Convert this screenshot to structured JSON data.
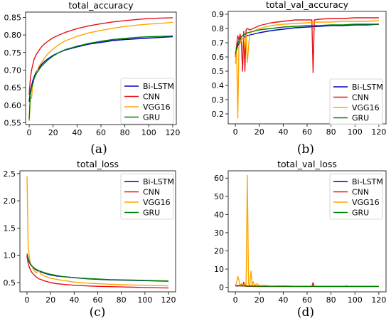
{
  "chart_data": [
    {
      "type": "line",
      "title": "total_accuracy",
      "caption": "(a)",
      "xlabel": "",
      "ylabel": "",
      "xlim": [
        -3,
        123
      ],
      "ylim": [
        0.545,
        0.865
      ],
      "xticks": [
        0,
        20,
        40,
        60,
        80,
        100,
        120
      ],
      "yticks": [
        0.55,
        0.6,
        0.65,
        0.7,
        0.75,
        0.8,
        0.85
      ],
      "ytick_labels": [
        "0.55",
        "0.60",
        "0.65",
        "0.70",
        "0.75",
        "0.80",
        "0.85"
      ],
      "legend_position": "lower-right",
      "grid": false,
      "series": [
        {
          "name": "Bi-LSTM",
          "color": "#0000cc",
          "x": [
            0,
            1,
            2,
            3,
            4,
            6,
            8,
            10,
            13,
            16,
            20,
            25,
            30,
            40,
            50,
            60,
            70,
            80,
            90,
            100,
            110,
            120
          ],
          "y": [
            0.61,
            0.64,
            0.655,
            0.67,
            0.68,
            0.695,
            0.705,
            0.715,
            0.725,
            0.733,
            0.742,
            0.75,
            0.757,
            0.766,
            0.774,
            0.779,
            0.784,
            0.787,
            0.789,
            0.791,
            0.793,
            0.795
          ]
        },
        {
          "name": "CNN",
          "color": "#e8101a",
          "x": [
            0,
            1,
            2,
            3,
            4,
            6,
            8,
            10,
            13,
            16,
            20,
            25,
            30,
            40,
            50,
            60,
            70,
            80,
            90,
            100,
            110,
            120
          ],
          "y": [
            0.63,
            0.675,
            0.7,
            0.715,
            0.73,
            0.745,
            0.755,
            0.765,
            0.775,
            0.783,
            0.792,
            0.8,
            0.807,
            0.818,
            0.826,
            0.832,
            0.837,
            0.841,
            0.844,
            0.847,
            0.848,
            0.849
          ]
        },
        {
          "name": "VGG16",
          "color": "#ffa500",
          "x": [
            0,
            1,
            2,
            3,
            4,
            6,
            8,
            10,
            13,
            16,
            20,
            25,
            30,
            40,
            50,
            60,
            70,
            80,
            90,
            100,
            110,
            120
          ],
          "y": [
            0.555,
            0.62,
            0.62,
            0.66,
            0.675,
            0.69,
            0.71,
            0.72,
            0.735,
            0.748,
            0.76,
            0.773,
            0.783,
            0.796,
            0.806,
            0.813,
            0.819,
            0.824,
            0.828,
            0.831,
            0.833,
            0.836
          ]
        },
        {
          "name": "GRU",
          "color": "#008000",
          "x": [
            0,
            1,
            2,
            3,
            4,
            6,
            8,
            10,
            13,
            16,
            20,
            25,
            30,
            40,
            50,
            60,
            70,
            80,
            90,
            100,
            110,
            120
          ],
          "y": [
            0.56,
            0.63,
            0.65,
            0.66,
            0.675,
            0.69,
            0.7,
            0.71,
            0.72,
            0.73,
            0.74,
            0.75,
            0.758,
            0.768,
            0.776,
            0.782,
            0.787,
            0.79,
            0.793,
            0.795,
            0.796,
            0.797
          ]
        }
      ]
    },
    {
      "type": "line",
      "title": "total_val_accuracy",
      "caption": "(b)",
      "xlabel": "",
      "ylabel": "",
      "xlim": [
        -6,
        126
      ],
      "ylim": [
        0.13,
        0.92
      ],
      "xticks": [
        0,
        20,
        40,
        60,
        80,
        100,
        120
      ],
      "yticks": [
        0.2,
        0.3,
        0.4,
        0.5,
        0.6,
        0.7,
        0.8,
        0.9
      ],
      "ytick_labels": [
        "0.2",
        "0.3",
        "0.4",
        "0.5",
        "0.6",
        "0.7",
        "0.8",
        "0.9"
      ],
      "legend_position": "lower-right",
      "grid": false,
      "series": [
        {
          "name": "Bi-LSTM",
          "color": "#0000cc",
          "x": [
            0,
            2,
            4,
            6,
            8,
            10,
            15,
            20,
            30,
            40,
            50,
            60,
            70,
            80,
            90,
            100,
            110,
            120
          ],
          "y": [
            0.62,
            0.68,
            0.71,
            0.73,
            0.74,
            0.75,
            0.76,
            0.77,
            0.785,
            0.795,
            0.805,
            0.81,
            0.815,
            0.82,
            0.82,
            0.825,
            0.825,
            0.83
          ]
        },
        {
          "name": "CNN",
          "color": "#e8101a",
          "x": [
            0,
            1,
            2,
            3,
            4,
            5,
            6,
            7,
            8,
            9,
            10,
            12,
            15,
            20,
            25,
            30,
            40,
            50,
            60,
            64,
            65,
            66,
            70,
            80,
            90,
            100,
            110,
            120
          ],
          "y": [
            0.6,
            0.68,
            0.75,
            0.72,
            0.76,
            0.7,
            0.5,
            0.78,
            0.5,
            0.79,
            0.8,
            0.79,
            0.8,
            0.82,
            0.83,
            0.84,
            0.85,
            0.86,
            0.86,
            0.86,
            0.49,
            0.86,
            0.865,
            0.87,
            0.87,
            0.875,
            0.875,
            0.875
          ]
        },
        {
          "name": "VGG16",
          "color": "#ffa500",
          "x": [
            0,
            1,
            2,
            3,
            4,
            5,
            6,
            7,
            8,
            9,
            10,
            12,
            15,
            20,
            25,
            30,
            40,
            50,
            60,
            70,
            80,
            90,
            100,
            110,
            120
          ],
          "y": [
            0.55,
            0.65,
            0.17,
            0.68,
            0.7,
            0.72,
            0.73,
            0.74,
            0.66,
            0.75,
            0.56,
            0.77,
            0.78,
            0.8,
            0.81,
            0.82,
            0.83,
            0.835,
            0.84,
            0.845,
            0.845,
            0.85,
            0.85,
            0.85,
            0.855
          ]
        },
        {
          "name": "GRU",
          "color": "#008000",
          "x": [
            0,
            2,
            4,
            6,
            8,
            10,
            15,
            20,
            30,
            40,
            50,
            60,
            70,
            80,
            90,
            100,
            110,
            120
          ],
          "y": [
            0.62,
            0.7,
            0.73,
            0.75,
            0.76,
            0.77,
            0.78,
            0.79,
            0.8,
            0.81,
            0.815,
            0.82,
            0.82,
            0.825,
            0.825,
            0.83,
            0.83,
            0.83
          ]
        }
      ]
    },
    {
      "type": "line",
      "title": "total_loss",
      "caption": "(c)",
      "xlabel": "",
      "ylabel": "",
      "xlim": [
        -6,
        126
      ],
      "ylim": [
        0.33,
        2.55
      ],
      "xticks": [
        0,
        20,
        40,
        60,
        80,
        100,
        120
      ],
      "yticks": [
        0.5,
        1.0,
        1.5,
        2.0,
        2.5
      ],
      "ytick_labels": [
        "0.5",
        "1.0",
        "1.5",
        "2.0",
        "2.5"
      ],
      "legend_position": "upper-right",
      "grid": false,
      "series": [
        {
          "name": "Bi-LSTM",
          "color": "#0000cc",
          "x": [
            0,
            1,
            2,
            3,
            4,
            6,
            8,
            10,
            15,
            20,
            25,
            30,
            40,
            50,
            60,
            70,
            80,
            90,
            100,
            110,
            120
          ],
          "y": [
            1.0,
            0.92,
            0.87,
            0.83,
            0.8,
            0.76,
            0.73,
            0.71,
            0.67,
            0.64,
            0.62,
            0.61,
            0.59,
            0.57,
            0.56,
            0.55,
            0.545,
            0.54,
            0.535,
            0.53,
            0.525
          ]
        },
        {
          "name": "CNN",
          "color": "#e8101a",
          "x": [
            0,
            1,
            2,
            3,
            4,
            6,
            8,
            10,
            15,
            20,
            25,
            30,
            40,
            50,
            60,
            70,
            80,
            90,
            100,
            110,
            120
          ],
          "y": [
            0.98,
            0.85,
            0.78,
            0.73,
            0.69,
            0.64,
            0.6,
            0.57,
            0.53,
            0.5,
            0.48,
            0.47,
            0.45,
            0.44,
            0.43,
            0.425,
            0.42,
            0.415,
            0.41,
            0.405,
            0.4
          ]
        },
        {
          "name": "VGG16",
          "color": "#ffa500",
          "x": [
            0,
            1,
            2,
            3,
            4,
            6,
            8,
            10,
            12,
            15,
            20,
            25,
            30,
            40,
            50,
            60,
            70,
            80,
            90,
            100,
            110,
            120
          ],
          "y": [
            2.45,
            1.2,
            0.95,
            0.85,
            0.8,
            0.72,
            0.68,
            0.72,
            0.65,
            0.62,
            0.58,
            0.56,
            0.54,
            0.51,
            0.49,
            0.48,
            0.47,
            0.46,
            0.455,
            0.45,
            0.445,
            0.44
          ]
        },
        {
          "name": "GRU",
          "color": "#008000",
          "x": [
            0,
            1,
            2,
            3,
            4,
            6,
            8,
            10,
            15,
            20,
            25,
            30,
            40,
            50,
            60,
            70,
            80,
            90,
            100,
            110,
            120
          ],
          "y": [
            1.03,
            0.94,
            0.88,
            0.84,
            0.81,
            0.77,
            0.74,
            0.72,
            0.68,
            0.65,
            0.63,
            0.61,
            0.59,
            0.575,
            0.565,
            0.555,
            0.55,
            0.545,
            0.54,
            0.535,
            0.53
          ]
        }
      ]
    },
    {
      "type": "line",
      "title": "total_val_loss",
      "caption": "(d)",
      "xlabel": "",
      "ylabel": "",
      "xlim": [
        -6,
        126
      ],
      "ylim": [
        -2.5,
        64
      ],
      "xticks": [
        0,
        20,
        40,
        60,
        80,
        100,
        120
      ],
      "yticks": [
        0,
        10,
        20,
        30,
        40,
        50,
        60
      ],
      "ytick_labels": [
        "0",
        "10",
        "20",
        "30",
        "40",
        "50",
        "60"
      ],
      "legend_position": "upper-right",
      "grid": false,
      "series": [
        {
          "name": "Bi-LSTM",
          "color": "#0000cc",
          "x": [
            0,
            10,
            20,
            40,
            60,
            80,
            100,
            120
          ],
          "y": [
            0.9,
            0.7,
            0.6,
            0.55,
            0.5,
            0.5,
            0.5,
            0.5
          ]
        },
        {
          "name": "CNN",
          "color": "#e8101a",
          "x": [
            0,
            2,
            4,
            6,
            7,
            8,
            10,
            20,
            40,
            60,
            64,
            65,
            66,
            70,
            80,
            100,
            120
          ],
          "y": [
            0.8,
            0.6,
            1.5,
            0.6,
            2.8,
            0.6,
            0.5,
            0.45,
            0.4,
            0.4,
            0.4,
            2.6,
            0.4,
            0.4,
            0.4,
            0.4,
            0.4
          ]
        },
        {
          "name": "VGG16",
          "color": "#ffa500",
          "x": [
            0,
            1,
            2,
            3,
            4,
            5,
            6,
            7,
            8,
            9,
            10,
            11,
            12,
            13,
            14,
            15,
            16,
            18,
            20,
            25,
            30,
            40,
            50,
            60,
            80,
            92,
            93,
            94,
            100,
            120
          ],
          "y": [
            1.0,
            2.5,
            6.0,
            4.0,
            1.0,
            2.0,
            0.8,
            1.5,
            2.0,
            1.0,
            61.5,
            2.0,
            1.0,
            9.0,
            1.0,
            3.0,
            1.0,
            2.0,
            0.8,
            1.0,
            0.6,
            0.8,
            0.5,
            0.5,
            0.5,
            0.5,
            1.0,
            0.5,
            0.5,
            0.5
          ]
        },
        {
          "name": "GRU",
          "color": "#008000",
          "x": [
            0,
            10,
            20,
            40,
            60,
            80,
            100,
            120
          ],
          "y": [
            0.9,
            0.7,
            0.6,
            0.55,
            0.5,
            0.5,
            0.5,
            0.5
          ]
        }
      ]
    }
  ]
}
